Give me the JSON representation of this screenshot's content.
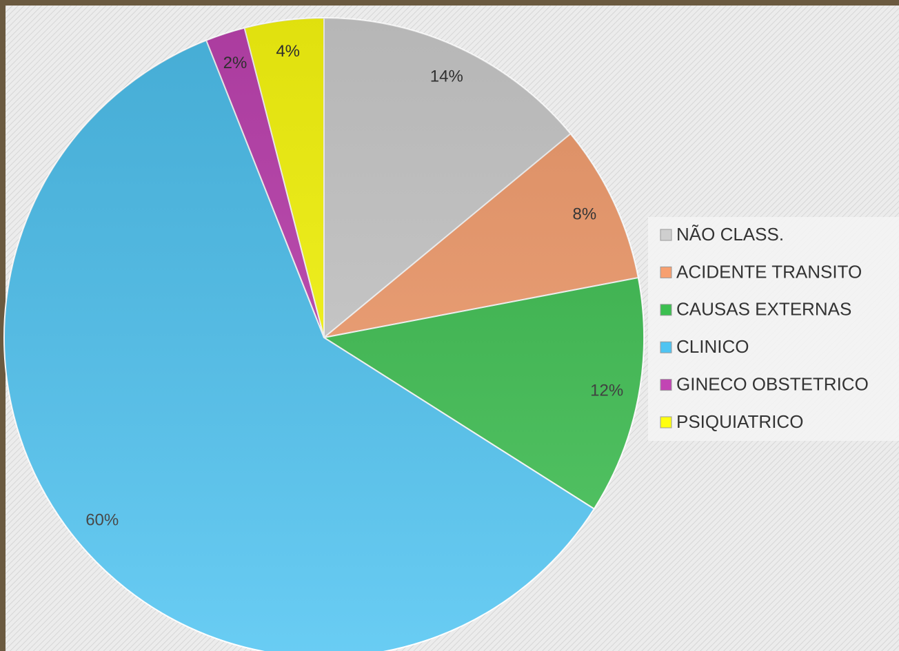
{
  "chart_data": {
    "type": "pie",
    "categories": [
      "NÃO CLASS.",
      "ACIDENTE  TRANSITO",
      "CAUSAS EXTERNAS",
      "CLINICO",
      "GINECO OBSTETRICO",
      "PSIQUIATRICO"
    ],
    "values": [
      14,
      8,
      12,
      60,
      2,
      4
    ],
    "value_labels": [
      "14%",
      "8%",
      "12%",
      "60%",
      "2%",
      "4%"
    ],
    "colors": [
      "#cfcfcf",
      "#f7a070",
      "#3cbf50",
      "#4fc4f2",
      "#c244b4",
      "#ffff10"
    ],
    "legend": "right"
  }
}
